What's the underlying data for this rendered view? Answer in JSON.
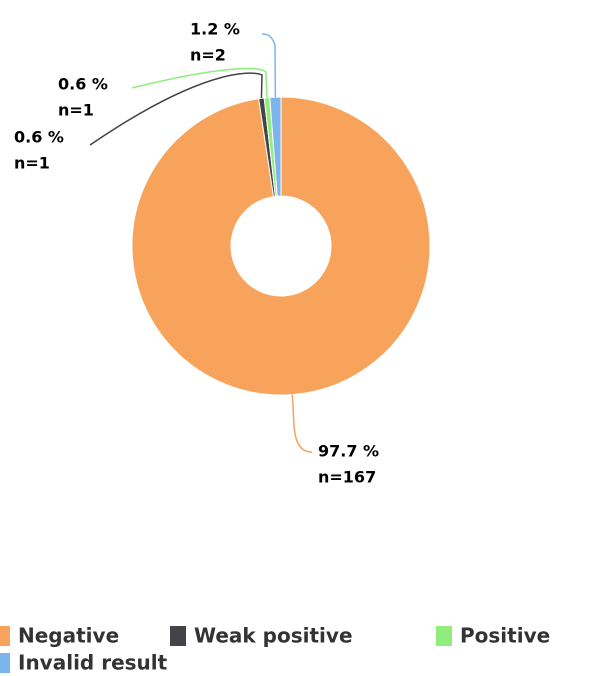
{
  "chart_data": {
    "type": "donut",
    "categories": [
      "Negative",
      "Weak positive",
      "Positive",
      "Invalid result"
    ],
    "values": [
      97.7,
      0.6,
      0.6,
      1.2
    ],
    "value_labels": [
      "97.7 %",
      "0.6 %",
      "0.6 %",
      "1.2 %"
    ],
    "count_labels": [
      "n=167",
      "n=1",
      "n=1",
      "n=2"
    ],
    "colors": [
      "#f7a35c",
      "#434348",
      "#90ed7d",
      "#7cb5ec"
    ],
    "legend": "bottom"
  }
}
